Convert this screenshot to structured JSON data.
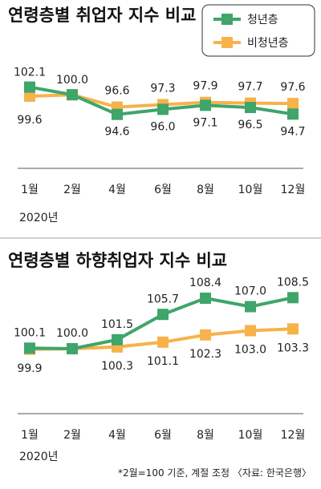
{
  "colors": {
    "youth": "#3fa56a",
    "nonyouth": "#f7b24a",
    "baseline": "#555555"
  },
  "footnote": "*2월=100 기준, 계절 조정 〈자료: 한국은행〉",
  "chart_data": [
    {
      "type": "line",
      "title": "연령층별 취업자 지수 비교",
      "categories": [
        "1월",
        "2월",
        "4월",
        "6월",
        "8월",
        "10월",
        "12월"
      ],
      "year_label": "2020년",
      "legend": "top-right",
      "ylim": [
        93,
        104
      ],
      "series": [
        {
          "name": "청년층",
          "values": [
            102.1,
            100.0,
            94.6,
            96.0,
            97.1,
            96.5,
            94.7
          ]
        },
        {
          "name": "비청년층",
          "values": [
            99.6,
            100.0,
            96.6,
            97.3,
            97.9,
            97.7,
            97.6
          ]
        }
      ],
      "value_labels": {
        "청년층": [
          "102.1",
          "100.0",
          "94.6",
          "96.0",
          "97.1",
          "96.5",
          "94.7"
        ],
        "비청년층": [
          "99.6",
          "",
          "96.6",
          "97.3",
          "97.9",
          "97.7",
          "97.6"
        ]
      }
    },
    {
      "type": "line",
      "title": "연령층별 하향취업자 지수 비교",
      "categories": [
        "1월",
        "2월",
        "4월",
        "6월",
        "8월",
        "10월",
        "12월"
      ],
      "year_label": "2020년",
      "ylim": [
        98,
        110
      ],
      "series": [
        {
          "name": "청년층",
          "values": [
            100.1,
            100.0,
            101.5,
            105.7,
            108.4,
            107.0,
            108.5
          ]
        },
        {
          "name": "비청년층",
          "values": [
            99.9,
            100.0,
            100.3,
            101.1,
            102.3,
            103.0,
            103.3
          ]
        }
      ],
      "value_labels": {
        "청년층": [
          "100.1",
          "100.0",
          "101.5",
          "105.7",
          "108.4",
          "107.0",
          "108.5"
        ],
        "비청년층": [
          "99.9",
          "",
          "100.3",
          "101.1",
          "102.3",
          "103.0",
          "103.3"
        ]
      }
    }
  ]
}
